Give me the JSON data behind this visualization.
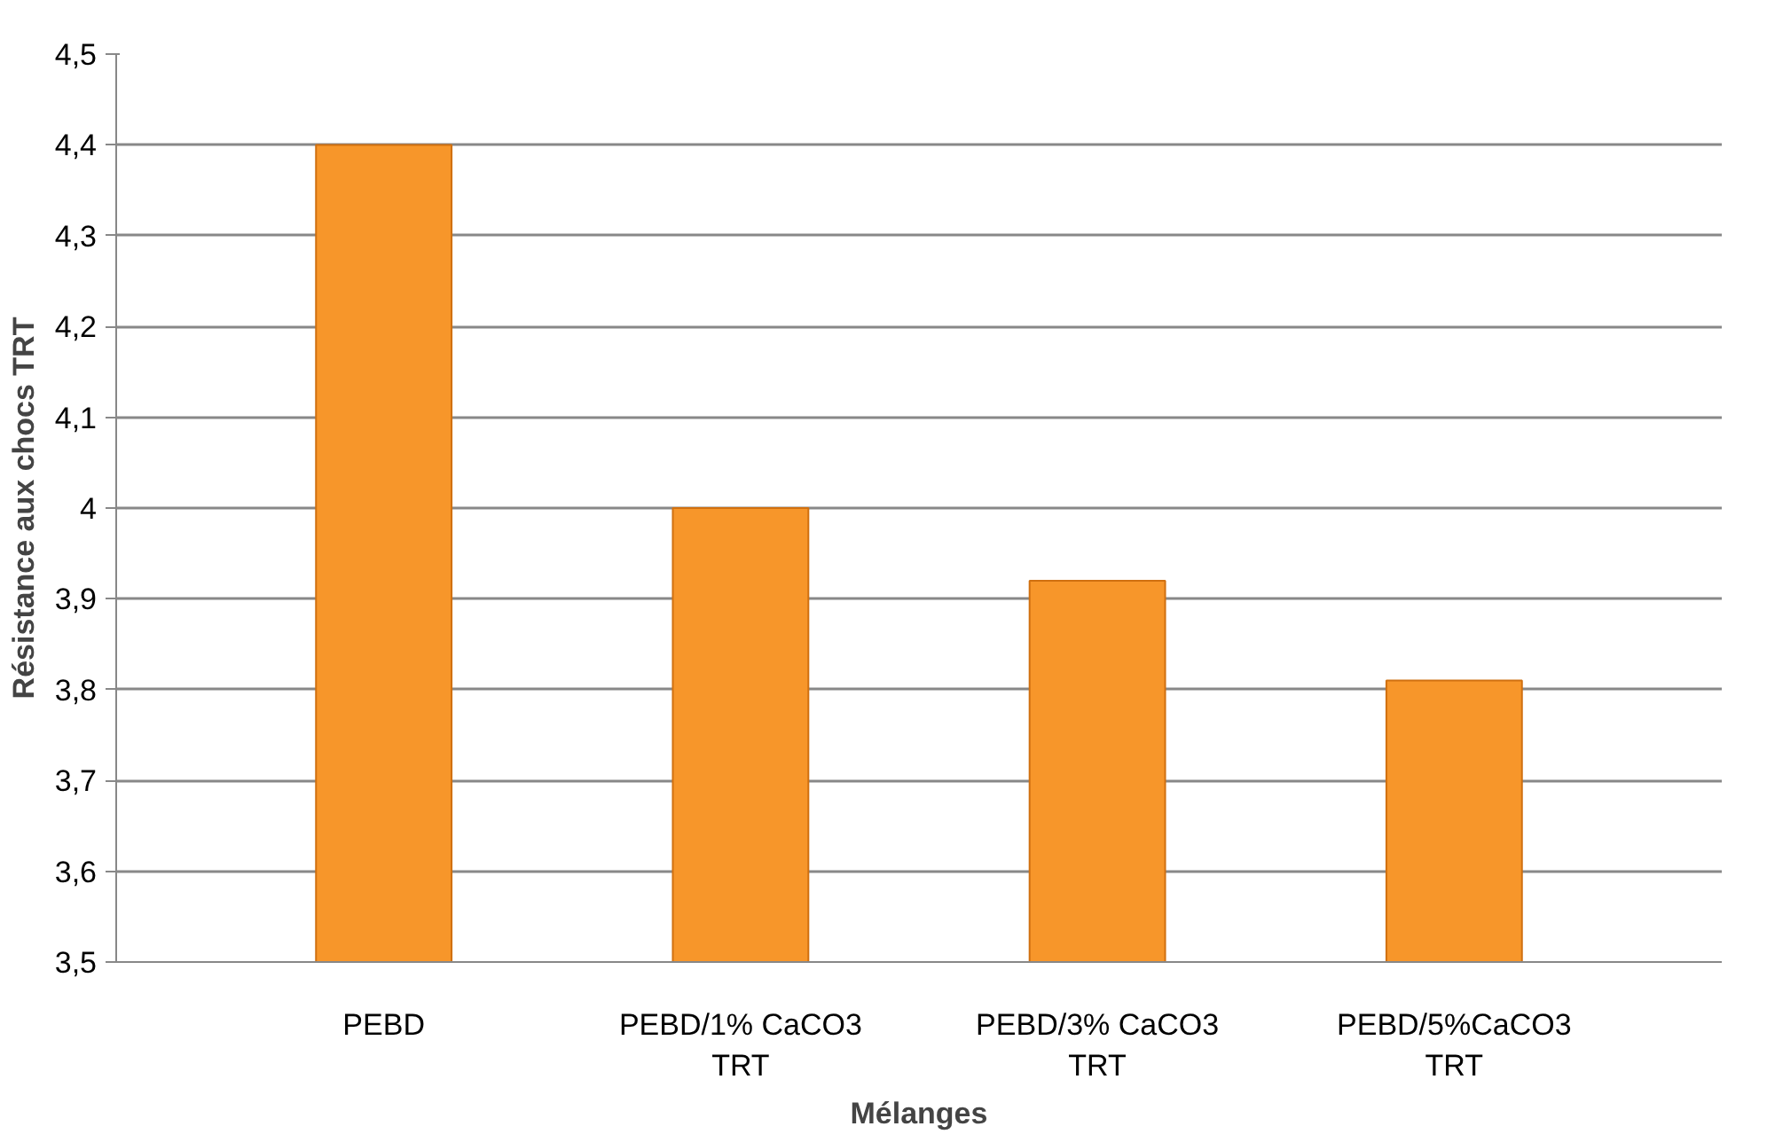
{
  "chart_data": {
    "type": "bar",
    "xlabel": "Mélanges",
    "ylabel": "Résistance aux chocs TRT",
    "categories": [
      "PEBD",
      "PEBD/1% CaCO3 TRT",
      "PEBD/3% CaCO3 TRT",
      "PEBD/5%CaCO3 TRT"
    ],
    "values": [
      4.4,
      4.0,
      3.92,
      3.81
    ],
    "color": "#f7962a",
    "ylim": [
      3.5,
      4.5
    ],
    "yticks": [
      {
        "value": 3.5,
        "label": "3,5"
      },
      {
        "value": 3.6,
        "label": "3,6"
      },
      {
        "value": 3.7,
        "label": "3,7"
      },
      {
        "value": 3.8,
        "label": "3,8"
      },
      {
        "value": 3.9,
        "label": "3,9"
      },
      {
        "value": 4,
        "label": "4"
      },
      {
        "value": 4.1,
        "label": "4,1"
      },
      {
        "value": 4.2,
        "label": "4,2"
      },
      {
        "value": 4.3,
        "label": "4,3"
      },
      {
        "value": 4.4,
        "label": "4,4"
      },
      {
        "value": 4.5,
        "label": "4,5"
      }
    ],
    "grid": "y"
  }
}
